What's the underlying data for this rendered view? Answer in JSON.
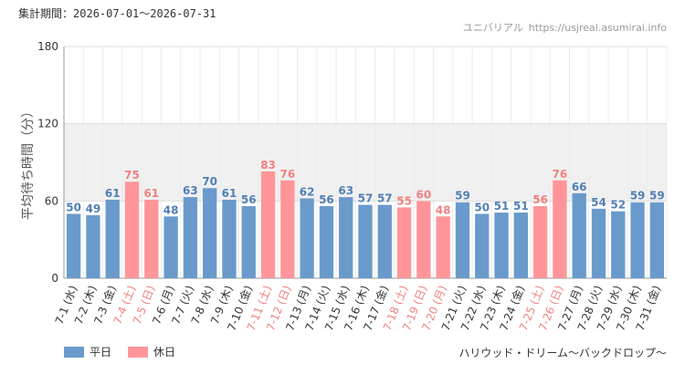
{
  "header": {
    "period_label": "集計期間：",
    "period_value": "2026-07-01〜2026-07-31",
    "site_name": "ユニバリアル",
    "site_url": "https://usjreal.asumirai.info"
  },
  "attraction_name": "ハリウッド・ドリーム〜バックドロップ〜",
  "colors": {
    "weekday": "#6a9acb",
    "holiday": "#ff9599",
    "weekday_text": "#4f7fb5",
    "holiday_text": "#f08080",
    "band": "#f0f0f0",
    "grid": "#dddddd"
  },
  "legend": [
    {
      "label": "平日",
      "color": "#6a9acb"
    },
    {
      "label": "休日",
      "color": "#ff9599"
    }
  ],
  "chart_data": {
    "type": "bar",
    "ylabel": "平均待ち時間（分）",
    "ylim": [
      0,
      180
    ],
    "yticks": [
      0,
      60,
      120,
      180
    ],
    "grid": true,
    "legend_position": "bottom-left",
    "categories": [
      "7-1 (水)",
      "7-2 (木)",
      "7-3 (金)",
      "7-4 (土)",
      "7-5 (日)",
      "7-6 (月)",
      "7-7 (火)",
      "7-8 (水)",
      "7-9 (木)",
      "7-10 (金)",
      "7-11 (土)",
      "7-12 (日)",
      "7-13 (月)",
      "7-14 (火)",
      "7-15 (水)",
      "7-16 (木)",
      "7-17 (金)",
      "7-18 (土)",
      "7-19 (日)",
      "7-20 (月)",
      "7-21 (火)",
      "7-22 (水)",
      "7-23 (木)",
      "7-24 (金)",
      "7-25 (土)",
      "7-26 (日)",
      "7-27 (月)",
      "7-28 (火)",
      "7-29 (水)",
      "7-30 (木)",
      "7-31 (金)"
    ],
    "values": [
      50,
      49,
      61,
      75,
      61,
      48,
      63,
      70,
      61,
      56,
      83,
      76,
      62,
      56,
      63,
      57,
      57,
      55,
      60,
      48,
      59,
      50,
      51,
      51,
      56,
      76,
      66,
      54,
      52,
      59,
      59
    ],
    "holiday": [
      false,
      false,
      false,
      true,
      true,
      false,
      false,
      false,
      false,
      false,
      true,
      true,
      false,
      false,
      false,
      false,
      false,
      true,
      true,
      true,
      false,
      false,
      false,
      false,
      true,
      true,
      false,
      false,
      false,
      false,
      false
    ],
    "series": [
      {
        "name": "平日"
      },
      {
        "name": "休日"
      }
    ]
  }
}
